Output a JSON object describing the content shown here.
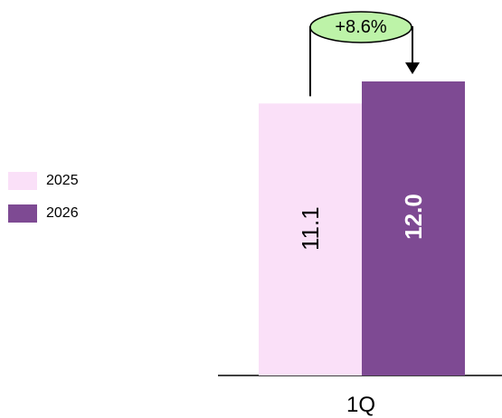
{
  "chart_data": {
    "type": "bar",
    "categories": [
      "1Q"
    ],
    "series": [
      {
        "name": "2025",
        "values": [
          11.1
        ],
        "color": "#FAE0F8",
        "value_label": "11.1",
        "label_color": "#000000"
      },
      {
        "name": "2026",
        "values": [
          12.0
        ],
        "color": "#7E4A93",
        "value_label": "12.0",
        "label_color": "#FFFFFF"
      }
    ],
    "ylim": [
      0,
      12.0
    ],
    "annotation": {
      "text": "+8.6%",
      "fill": "#BDF3A8"
    },
    "title": "",
    "xlabel": "",
    "ylabel": "",
    "grid": false,
    "legend_position": "left"
  }
}
